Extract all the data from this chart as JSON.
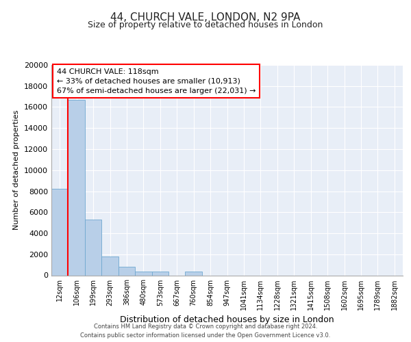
{
  "title1": "44, CHURCH VALE, LONDON, N2 9PA",
  "title2": "Size of property relative to detached houses in London",
  "xlabel": "Distribution of detached houses by size in London",
  "ylabel": "Number of detached properties",
  "categories": [
    "12sqm",
    "106sqm",
    "199sqm",
    "293sqm",
    "386sqm",
    "480sqm",
    "573sqm",
    "667sqm",
    "760sqm",
    "854sqm",
    "947sqm",
    "1041sqm",
    "1134sqm",
    "1228sqm",
    "1321sqm",
    "1415sqm",
    "1508sqm",
    "1602sqm",
    "1695sqm",
    "1789sqm",
    "1882sqm"
  ],
  "values": [
    8200,
    16700,
    5300,
    1800,
    800,
    330,
    350,
    0,
    350,
    0,
    0,
    0,
    0,
    0,
    0,
    0,
    0,
    0,
    0,
    0,
    0
  ],
  "bar_color": "#b8cfe8",
  "bar_edge_color": "#6fa8d0",
  "annotation_title": "44 CHURCH VALE: 118sqm",
  "annotation_line1": "← 33% of detached houses are smaller (10,913)",
  "annotation_line2": "67% of semi-detached houses are larger (22,031) →",
  "ylim": [
    0,
    20000
  ],
  "yticks": [
    0,
    2000,
    4000,
    6000,
    8000,
    10000,
    12000,
    14000,
    16000,
    18000,
    20000
  ],
  "footer1": "Contains HM Land Registry data © Crown copyright and database right 2024.",
  "footer2": "Contains public sector information licensed under the Open Government Licence v3.0.",
  "bg_color": "#e8eef7",
  "grid_color": "#ffffff"
}
